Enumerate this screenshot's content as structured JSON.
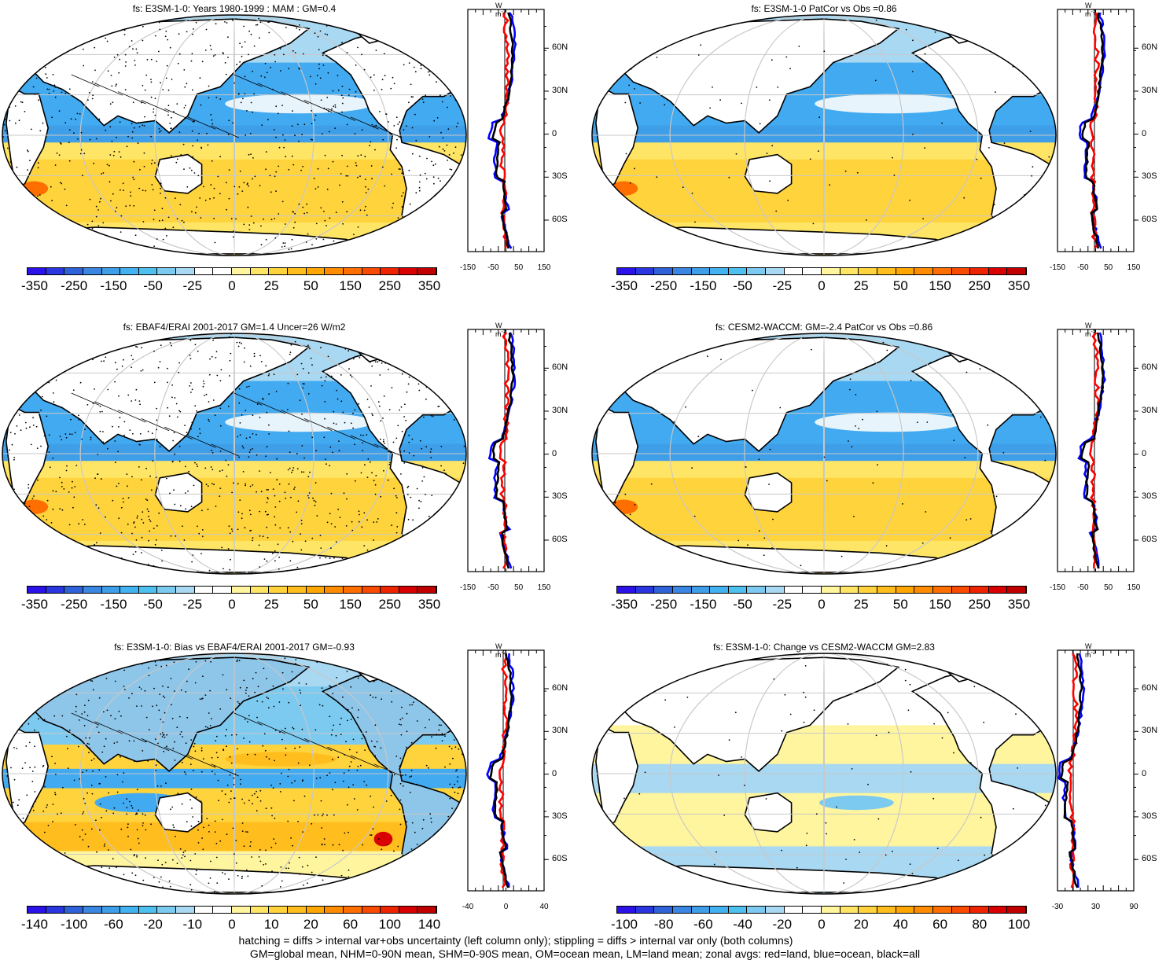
{
  "panels": [
    {
      "id": "p1",
      "title": "fs: E3SM-1-0: Years 1980-1999 : MAM : GM=0.4",
      "colorbar": "cb1",
      "xticks": [
        "-150",
        "-50",
        "50",
        "150"
      ],
      "style": "mean",
      "hatching": true,
      "stippling": "dense"
    },
    {
      "id": "p2",
      "title": "fs: E3SM-1-0 PatCor vs Obs =0.86",
      "colorbar": "cb1",
      "xticks": [
        "-150",
        "-50",
        "50",
        "150"
      ],
      "style": "mean",
      "hatching": false,
      "stippling": "sparse"
    },
    {
      "id": "p3",
      "title": "fs: EBAF4/ERAI 2001-2017 GM=1.4 Uncer=26 W/m2",
      "colorbar": "cb1",
      "xticks": [
        "-150",
        "-50",
        "50",
        "150"
      ],
      "style": "mean",
      "hatching": true,
      "stippling": "dense"
    },
    {
      "id": "p4",
      "title": "fs: CESM2-WACCM: GM=-2.4 PatCor vs Obs =0.86",
      "colorbar": "cb1",
      "xticks": [
        "-150",
        "-50",
        "50",
        "150"
      ],
      "style": "mean",
      "hatching": false,
      "stippling": "sparse"
    },
    {
      "id": "p5",
      "title": "fs: E3SM-1-0: Bias vs EBAF4/ERAI 2001-2017 GM=-0.93",
      "colorbar": "cb2",
      "xticks": [
        "-40",
        "0",
        "40"
      ],
      "style": "bias",
      "hatching": true,
      "stippling": "dense"
    },
    {
      "id": "p6",
      "title": "fs: E3SM-1-0: Change vs CESM2-WACCM GM=2.83",
      "colorbar": "cb3",
      "xticks": [
        "-30",
        "30",
        "90"
      ],
      "style": "change",
      "hatching": false,
      "stippling": "sparse"
    }
  ],
  "colorbars": {
    "cb1": {
      "labels": [
        "-350",
        "-250",
        "-150",
        "-50",
        "-25",
        "0",
        "25",
        "50",
        "150",
        "250",
        "350"
      ]
    },
    "cb2": {
      "labels": [
        "-140",
        "-100",
        "-60",
        "-20",
        "-10",
        "0",
        "10",
        "20",
        "60",
        "100",
        "140"
      ]
    },
    "cb3": {
      "labels": [
        "-100",
        "-80",
        "-60",
        "-40",
        "-20",
        "0",
        "20",
        "40",
        "60",
        "80",
        "100"
      ]
    }
  },
  "colorbar_colors": [
    "#2a12e8",
    "#2a36e0",
    "#2f62d8",
    "#3a86e0",
    "#3f9ee8",
    "#42b2f0",
    "#4ec0ee",
    "#7dcaf0",
    "#a8d8f2",
    "#ffffff",
    "#ffffff",
    "#fff59e",
    "#ffe565",
    "#ffd33c",
    "#ffbe1e",
    "#ffa600",
    "#ff8c00",
    "#ff6e00",
    "#f84a00",
    "#ee2400",
    "#d80000",
    "#c00000"
  ],
  "profile_lat_labels": [
    "60N",
    "30N",
    "0",
    "30S",
    "60S"
  ],
  "profile_unit": "W m",
  "profile_unit_exp": "-2",
  "footer": {
    "line1": "hatching = diffs > internal var+obs uncertainty (left column only); stippling = diffs > internal var only (both columns)",
    "line2": "GM=global mean, NHM=0-90N mean, SHM=0-90S mean, OM=ocean mean, LM=land mean; zonal avgs: red=land, blue=ocean, black=all"
  },
  "colors": {
    "land_zonal": "#ff0000",
    "ocean_zonal": "#0000ff",
    "all_zonal": "#000000"
  }
}
